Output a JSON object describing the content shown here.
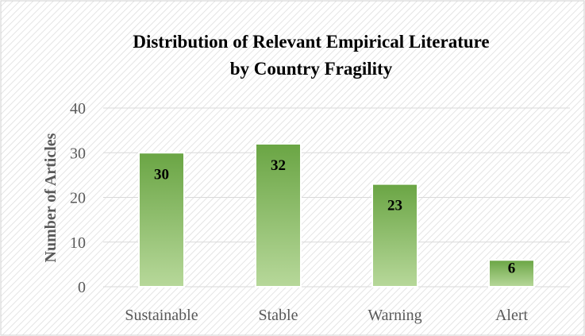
{
  "chart_data": {
    "type": "bar",
    "title": "Distribution of Relevant Empirical Literature by Country Fragility",
    "title_lines": [
      "Distribution of Relevant Empirical Literature",
      "by Country Fragility"
    ],
    "xlabel": "",
    "ylabel": "Number of Articles",
    "categories": [
      "Sustainable",
      "Stable",
      "Warning",
      "Alert"
    ],
    "values": [
      30,
      32,
      23,
      6
    ],
    "data_labels": [
      "30",
      "32",
      "23",
      "6"
    ],
    "ylim": [
      0,
      40
    ],
    "yticks": [
      0,
      10,
      20,
      30,
      40
    ],
    "ytick_labels": [
      "0",
      "10",
      "20",
      "30",
      "40"
    ],
    "grid": true,
    "legend": "none",
    "colors": {
      "bar_top": "#6aa544",
      "bar_bottom": "#b7d89a",
      "grid": "#d9d9d9",
      "hatch": "#dedede",
      "frame": "#d0d0d0"
    }
  }
}
